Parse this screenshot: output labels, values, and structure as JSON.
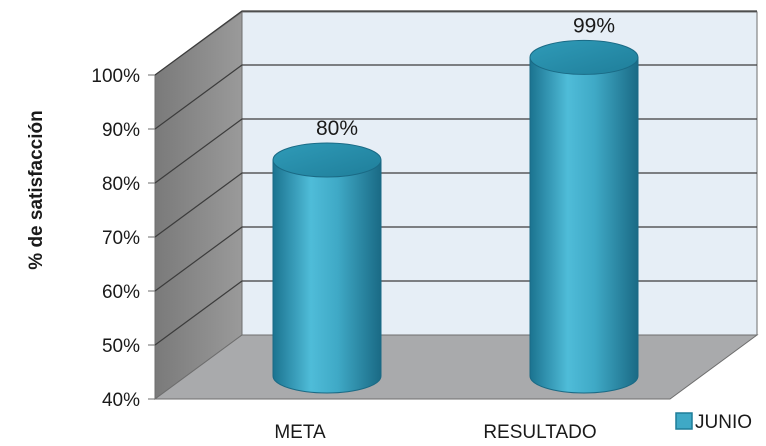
{
  "chart_data": {
    "type": "bar",
    "style": "3d-cylinder",
    "categories": [
      "META",
      "RESULTADO"
    ],
    "series": [
      {
        "name": "JUNIO",
        "values": [
          80,
          99
        ],
        "color": "#3fa9c6"
      }
    ],
    "data_labels": [
      "80%",
      "99%"
    ],
    "ylabel": "% de satisfacción",
    "xlabel": "",
    "ylim": [
      40,
      100
    ],
    "yticks": [
      40,
      50,
      60,
      70,
      80,
      90,
      100
    ],
    "ytick_labels": [
      "40%",
      "50%",
      "60%",
      "70%",
      "80%",
      "90%",
      "100%"
    ],
    "grid": true,
    "legend_position": "bottom-right",
    "colors": {
      "back_wall": "#e6eef6",
      "side_wall": "#8c8c8c",
      "floor": "#a9aaac",
      "gridline": "#3c3c3c",
      "bar": "#3fa9c6",
      "bar_dark": "#1f7d98",
      "bar_top": "#2b91ae"
    }
  }
}
